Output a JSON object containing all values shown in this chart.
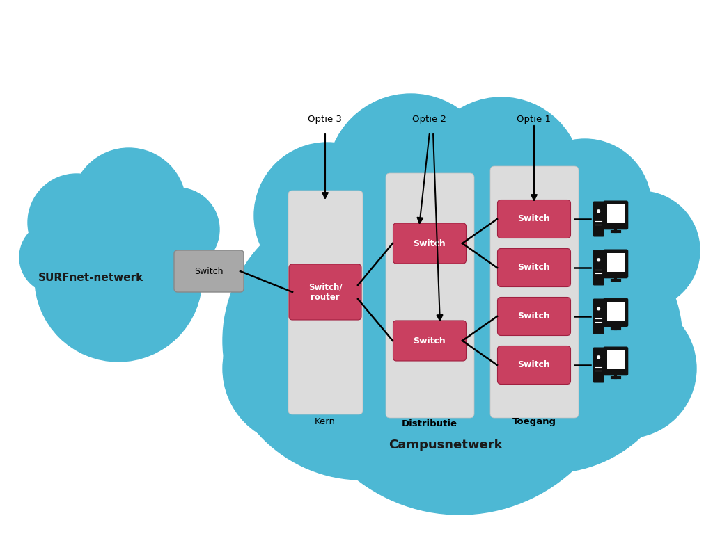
{
  "bg_color": "#ffffff",
  "cloud_blue": "#4db8d4",
  "surfnet_label": "SURFnet-netwerk",
  "campus_label": "Campusnetwerk",
  "kern_label": "Kern",
  "distributie_label": "Distributie",
  "toegang_label": "Toegang",
  "switch_gray_color": "#a8a8a8",
  "red_color": "#c94060",
  "panel_color": "#dcdcdc",
  "white_text": "#ffffff",
  "black_text": "#1a1a1a",
  "optie1": "Optie 1",
  "optie2": "Optie 2",
  "optie3": "Optie 3",
  "figsize": [
    10.24,
    7.68
  ],
  "dpi": 100
}
